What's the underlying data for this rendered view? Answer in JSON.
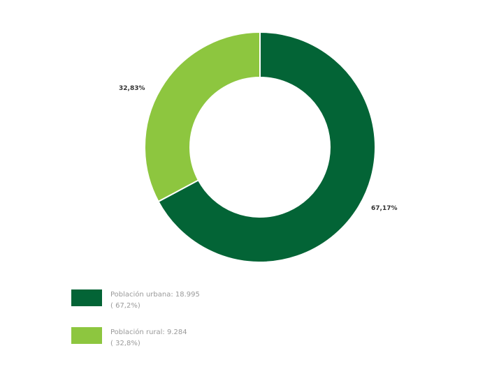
{
  "chart_data": {
    "type": "pie",
    "donut": true,
    "categories": [
      "Población urbana",
      "Población rural"
    ],
    "values": [
      18995,
      9284
    ],
    "percent_labels": [
      "67,17%",
      "32,83%"
    ],
    "colors": [
      "#036436",
      "#8dc63f"
    ],
    "legend": {
      "placement": "bottom-left",
      "items": [
        {
          "line1": "Población urbana: 18.995",
          "line2": "( 67,2%)",
          "color": "#036436"
        },
        {
          "line1": "Población rural: 9.284",
          "line2": "( 32,8%)",
          "color": "#8dc63f"
        }
      ]
    }
  }
}
